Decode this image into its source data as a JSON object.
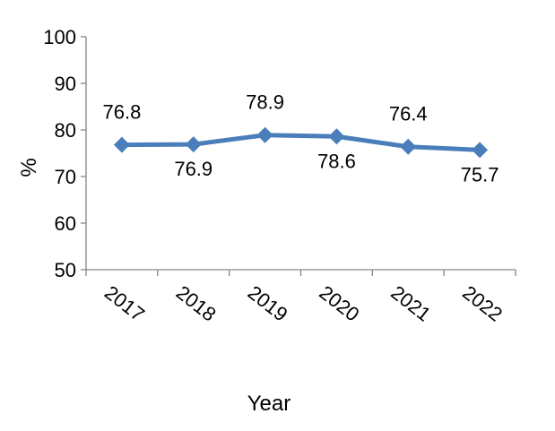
{
  "chart_data": {
    "type": "line",
    "categories": [
      "2017",
      "2018",
      "2019",
      "2020",
      "2021",
      "2022"
    ],
    "series": [
      {
        "values": [
          76.8,
          76.9,
          78.9,
          78.6,
          76.4,
          75.7
        ]
      }
    ],
    "data_labels": [
      "76.8",
      "76.9",
      "78.9",
      "78.6",
      "76.4",
      "75.7"
    ],
    "data_label_positions": [
      "above",
      "below",
      "above",
      "below",
      "above",
      "below"
    ],
    "xlabel": "Year",
    "ylabel": "%",
    "ylim": [
      50,
      100
    ],
    "yticks": [
      "50",
      "60",
      "70",
      "80",
      "90",
      "100"
    ],
    "grid": false,
    "legend": "none",
    "marker": "diamond",
    "line_color": "#4a7ebb",
    "axis_color": "#868686"
  }
}
